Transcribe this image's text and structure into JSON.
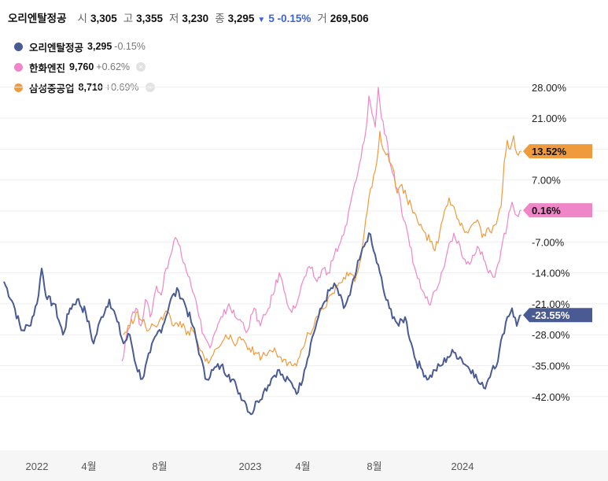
{
  "header": {
    "name": "오리엔탈정공",
    "open_label": "시",
    "open": "3,305",
    "high_label": "고",
    "high": "3,355",
    "low_label": "저",
    "low": "3,230",
    "close_label": "종",
    "close": "3,295",
    "arrow": "▼",
    "change": "5 -0.15%",
    "volume_label": "거",
    "volume": "269,506"
  },
  "legend": [
    {
      "name": "오리엔탈정공",
      "value": "3,295",
      "change": "-0.15%",
      "color": "#4a5b94",
      "removable": false
    },
    {
      "name": "한화엔진",
      "value": "9,760",
      "change": "+0.62%",
      "color": "#ef86c7",
      "removable": true
    },
    {
      "name": "삼성중공업",
      "value": "8,710",
      "change": "+0.69%",
      "color": "#ee9a3d",
      "removable": true
    }
  ],
  "remove_glyph": "×",
  "chart_data": {
    "type": "line",
    "y_unit": "%",
    "ylim": [
      -50,
      32
    ],
    "y_ticks": [
      28,
      21,
      14,
      7,
      0,
      -7,
      -14,
      -21,
      -28,
      -35,
      -42
    ],
    "y_tick_labels": [
      "28.00%",
      "21.00%",
      "7.00%",
      "-7.00%",
      "-14.00%",
      "-21.00%",
      "-28.00%",
      "-35.00%",
      "-42.00%"
    ],
    "x_tick_labels": [
      "2022",
      "4월",
      "8월",
      "2023",
      "4월",
      "8월",
      "2024"
    ],
    "grid": true,
    "legend_position": "top-left",
    "series": [
      {
        "name": "오리엔탈정공",
        "color": "#4a5b94",
        "last_label": "-23.55%",
        "points": [
          [
            0,
            -16
          ],
          [
            12,
            -21
          ],
          [
            22,
            -27
          ],
          [
            32,
            -26
          ],
          [
            42,
            -21
          ],
          [
            48,
            -13
          ],
          [
            55,
            -20
          ],
          [
            64,
            -21
          ],
          [
            75,
            -28
          ],
          [
            84,
            -22
          ],
          [
            93,
            -20
          ],
          [
            104,
            -23
          ],
          [
            114,
            -30
          ],
          [
            124,
            -24
          ],
          [
            134,
            -20
          ],
          [
            144,
            -25
          ],
          [
            152,
            -30
          ],
          [
            160,
            -28
          ],
          [
            168,
            -35
          ],
          [
            176,
            -38
          ],
          [
            186,
            -32
          ],
          [
            194,
            -28
          ],
          [
            202,
            -26
          ],
          [
            212,
            -20
          ],
          [
            222,
            -18
          ],
          [
            230,
            -21
          ],
          [
            240,
            -26
          ],
          [
            250,
            -33
          ],
          [
            256,
            -38
          ],
          [
            266,
            -36
          ],
          [
            276,
            -35
          ],
          [
            286,
            -37
          ],
          [
            296,
            -40
          ],
          [
            306,
            -43
          ],
          [
            314,
            -46
          ],
          [
            322,
            -43
          ],
          [
            330,
            -41
          ],
          [
            340,
            -38
          ],
          [
            348,
            -36
          ],
          [
            356,
            -38
          ],
          [
            366,
            -39
          ],
          [
            374,
            -41
          ],
          [
            382,
            -36
          ],
          [
            390,
            -30
          ],
          [
            398,
            -25
          ],
          [
            406,
            -21
          ],
          [
            414,
            -18
          ],
          [
            422,
            -17
          ],
          [
            432,
            -22
          ],
          [
            440,
            -19
          ],
          [
            446,
            -15
          ],
          [
            452,
            -11
          ],
          [
            458,
            -8
          ],
          [
            464,
            -5
          ],
          [
            470,
            -9
          ],
          [
            478,
            -14
          ],
          [
            484,
            -19
          ],
          [
            490,
            -22
          ],
          [
            496,
            -24
          ],
          [
            502,
            -26
          ],
          [
            510,
            -24
          ],
          [
            518,
            -30
          ],
          [
            524,
            -34
          ],
          [
            532,
            -36
          ],
          [
            540,
            -38
          ],
          [
            548,
            -36
          ],
          [
            556,
            -35
          ],
          [
            564,
            -33
          ],
          [
            572,
            -32
          ],
          [
            580,
            -33
          ],
          [
            588,
            -35
          ],
          [
            596,
            -36
          ],
          [
            604,
            -39
          ],
          [
            610,
            -40
          ],
          [
            616,
            -38
          ],
          [
            622,
            -35
          ],
          [
            628,
            -34
          ],
          [
            634,
            -28
          ],
          [
            640,
            -24
          ],
          [
            646,
            -22
          ],
          [
            652,
            -26
          ],
          [
            656,
            -23.55
          ]
        ]
      },
      {
        "name": "한화엔진",
        "color": "#ef86c7",
        "last_label": "0.16%",
        "points": [
          [
            150,
            -34
          ],
          [
            156,
            -28
          ],
          [
            162,
            -24
          ],
          [
            168,
            -22
          ],
          [
            174,
            -26
          ],
          [
            180,
            -20
          ],
          [
            186,
            -24
          ],
          [
            194,
            -17
          ],
          [
            200,
            -19
          ],
          [
            206,
            -13
          ],
          [
            212,
            -10
          ],
          [
            218,
            -6
          ],
          [
            224,
            -8
          ],
          [
            230,
            -12
          ],
          [
            236,
            -15
          ],
          [
            242,
            -19
          ],
          [
            248,
            -24
          ],
          [
            254,
            -28
          ],
          [
            262,
            -31
          ],
          [
            270,
            -27
          ],
          [
            278,
            -24
          ],
          [
            286,
            -21
          ],
          [
            294,
            -24
          ],
          [
            302,
            -25
          ],
          [
            310,
            -27
          ],
          [
            318,
            -22
          ],
          [
            326,
            -26
          ],
          [
            334,
            -23
          ],
          [
            342,
            -19
          ],
          [
            350,
            -14
          ],
          [
            358,
            -19
          ],
          [
            366,
            -23
          ],
          [
            374,
            -20
          ],
          [
            382,
            -15
          ],
          [
            390,
            -13
          ],
          [
            398,
            -16
          ],
          [
            406,
            -13
          ],
          [
            412,
            -14
          ],
          [
            420,
            -10
          ],
          [
            428,
            -7
          ],
          [
            436,
            -3
          ],
          [
            442,
            3
          ],
          [
            448,
            7
          ],
          [
            454,
            12
          ],
          [
            460,
            18
          ],
          [
            464,
            26
          ],
          [
            468,
            22
          ],
          [
            472,
            19
          ],
          [
            476,
            28
          ],
          [
            480,
            21
          ],
          [
            486,
            17
          ],
          [
            492,
            10
          ],
          [
            500,
            5
          ],
          [
            508,
            -2
          ],
          [
            516,
            -8
          ],
          [
            524,
            -14
          ],
          [
            532,
            -18
          ],
          [
            540,
            -21
          ],
          [
            548,
            -18
          ],
          [
            556,
            -14
          ],
          [
            564,
            -9
          ],
          [
            572,
            -5
          ],
          [
            580,
            -8
          ],
          [
            588,
            -12
          ],
          [
            596,
            -10
          ],
          [
            602,
            -8
          ],
          [
            610,
            -11
          ],
          [
            616,
            -14
          ],
          [
            622,
            -15
          ],
          [
            628,
            -12
          ],
          [
            634,
            -7
          ],
          [
            640,
            -3
          ],
          [
            646,
            2
          ],
          [
            652,
            -1
          ],
          [
            656,
            0.16
          ]
        ]
      },
      {
        "name": "삼성중공업",
        "color": "#ee9a3d",
        "last_label": "13.52%",
        "points": [
          [
            152,
            -28
          ],
          [
            160,
            -26
          ],
          [
            168,
            -23
          ],
          [
            176,
            -25
          ],
          [
            184,
            -27
          ],
          [
            192,
            -26
          ],
          [
            200,
            -24
          ],
          [
            208,
            -23
          ],
          [
            216,
            -26
          ],
          [
            224,
            -25
          ],
          [
            232,
            -28
          ],
          [
            240,
            -27
          ],
          [
            248,
            -31
          ],
          [
            256,
            -34
          ],
          [
            264,
            -33
          ],
          [
            272,
            -31
          ],
          [
            280,
            -29
          ],
          [
            288,
            -28
          ],
          [
            296,
            -30
          ],
          [
            304,
            -29
          ],
          [
            312,
            -31
          ],
          [
            320,
            -32
          ],
          [
            328,
            -33
          ],
          [
            336,
            -32
          ],
          [
            344,
            -31
          ],
          [
            352,
            -33
          ],
          [
            360,
            -35
          ],
          [
            368,
            -35
          ],
          [
            376,
            -33
          ],
          [
            384,
            -29
          ],
          [
            392,
            -27
          ],
          [
            400,
            -24
          ],
          [
            408,
            -22
          ],
          [
            416,
            -19
          ],
          [
            424,
            -17
          ],
          [
            432,
            -15
          ],
          [
            440,
            -14
          ],
          [
            446,
            -16
          ],
          [
            452,
            -12
          ],
          [
            458,
            -5
          ],
          [
            462,
            0
          ],
          [
            466,
            5
          ],
          [
            470,
            8
          ],
          [
            474,
            11
          ],
          [
            478,
            18
          ],
          [
            482,
            14
          ],
          [
            488,
            13
          ],
          [
            494,
            10
          ],
          [
            500,
            4
          ],
          [
            506,
            6
          ],
          [
            512,
            3
          ],
          [
            518,
            1
          ],
          [
            524,
            -1
          ],
          [
            530,
            -3
          ],
          [
            536,
            -5
          ],
          [
            542,
            -7
          ],
          [
            548,
            -9
          ],
          [
            554,
            -5
          ],
          [
            560,
            0
          ],
          [
            566,
            3
          ],
          [
            572,
            1
          ],
          [
            578,
            -2
          ],
          [
            584,
            -4
          ],
          [
            590,
            -5
          ],
          [
            596,
            -3
          ],
          [
            602,
            -2
          ],
          [
            608,
            -6
          ],
          [
            614,
            -4
          ],
          [
            620,
            -5
          ],
          [
            626,
            -3
          ],
          [
            632,
            1
          ],
          [
            636,
            11
          ],
          [
            640,
            16
          ],
          [
            644,
            14
          ],
          [
            648,
            17
          ],
          [
            652,
            13
          ],
          [
            656,
            13.52
          ]
        ]
      }
    ]
  }
}
